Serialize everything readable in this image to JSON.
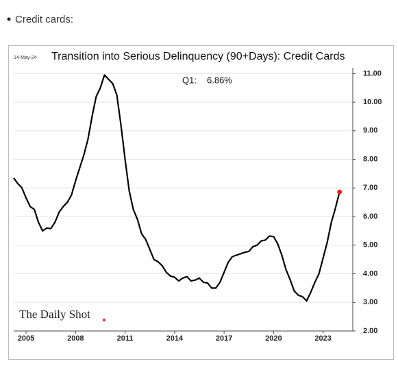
{
  "heading": "Credit cards:",
  "chart_data": {
    "type": "line",
    "date": "14-May-24",
    "title": "Transition into Serious Delinquency (90+Days): Credit Cards",
    "annotations": [
      "Q1:",
      "6.86%"
    ],
    "logo": "The Daily Shot",
    "x": [
      2004.25,
      2004.5,
      2004.75,
      2005,
      2005.25,
      2005.5,
      2005.75,
      2006,
      2006.25,
      2006.5,
      2006.75,
      2007,
      2007.25,
      2007.5,
      2007.75,
      2008,
      2008.25,
      2008.5,
      2008.75,
      2009,
      2009.25,
      2009.5,
      2009.75,
      2010,
      2010.25,
      2010.5,
      2010.75,
      2011,
      2011.25,
      2011.5,
      2011.75,
      2012,
      2012.25,
      2012.5,
      2012.75,
      2013,
      2013.25,
      2013.5,
      2013.75,
      2014,
      2014.25,
      2014.5,
      2014.75,
      2015,
      2015.25,
      2015.5,
      2015.75,
      2016,
      2016.25,
      2016.5,
      2016.75,
      2017,
      2017.25,
      2017.5,
      2017.75,
      2018,
      2018.25,
      2018.5,
      2018.75,
      2019,
      2019.25,
      2019.5,
      2019.75,
      2020,
      2020.25,
      2020.5,
      2020.75,
      2021,
      2021.25,
      2021.5,
      2021.75,
      2022,
      2022.25,
      2022.5,
      2022.75,
      2023,
      2023.25,
      2023.5,
      2023.75,
      2024
    ],
    "series": [
      {
        "color": "#000000",
        "highlight_color": "#e8241d",
        "values": [
          7.35,
          7.15,
          7.0,
          6.65,
          6.35,
          6.25,
          5.8,
          5.5,
          5.6,
          5.58,
          5.8,
          6.15,
          6.35,
          6.5,
          6.75,
          7.25,
          7.7,
          8.15,
          8.7,
          9.5,
          10.2,
          10.5,
          10.95,
          10.8,
          10.65,
          10.25,
          9.2,
          8.0,
          6.9,
          6.25,
          5.9,
          5.4,
          5.2,
          4.85,
          4.5,
          4.42,
          4.28,
          4.05,
          3.92,
          3.88,
          3.75,
          3.85,
          3.9,
          3.75,
          3.78,
          3.85,
          3.7,
          3.68,
          3.5,
          3.5,
          3.7,
          4.05,
          4.4,
          4.6,
          4.65,
          4.7,
          4.75,
          4.78,
          4.95,
          5.0,
          5.15,
          5.18,
          5.32,
          5.3,
          5.05,
          4.65,
          4.15,
          3.8,
          3.4,
          3.25,
          3.2,
          3.05,
          3.35,
          3.7,
          4.0,
          4.55,
          5.1,
          5.8,
          6.3,
          6.86
        ]
      }
    ],
    "xlim": [
      2004.25,
      2024.8
    ],
    "xticks": [
      2005,
      2008,
      2011,
      2014,
      2017,
      2020,
      2023
    ],
    "ylim": [
      2,
      11.2
    ],
    "yticks": [
      {
        "value": 2,
        "label": "2.00"
      },
      {
        "value": 3,
        "label": "3.00"
      },
      {
        "value": 4,
        "label": "4.00"
      },
      {
        "value": 5,
        "label": "5.00"
      },
      {
        "value": 6,
        "label": "6.00"
      },
      {
        "value": 7,
        "label": "7.00"
      },
      {
        "value": 8,
        "label": "8.00"
      },
      {
        "value": 9,
        "label": "9.00"
      },
      {
        "value": 10,
        "label": "10.00"
      },
      {
        "value": 11,
        "label": "11.00"
      }
    ],
    "grid": true
  }
}
